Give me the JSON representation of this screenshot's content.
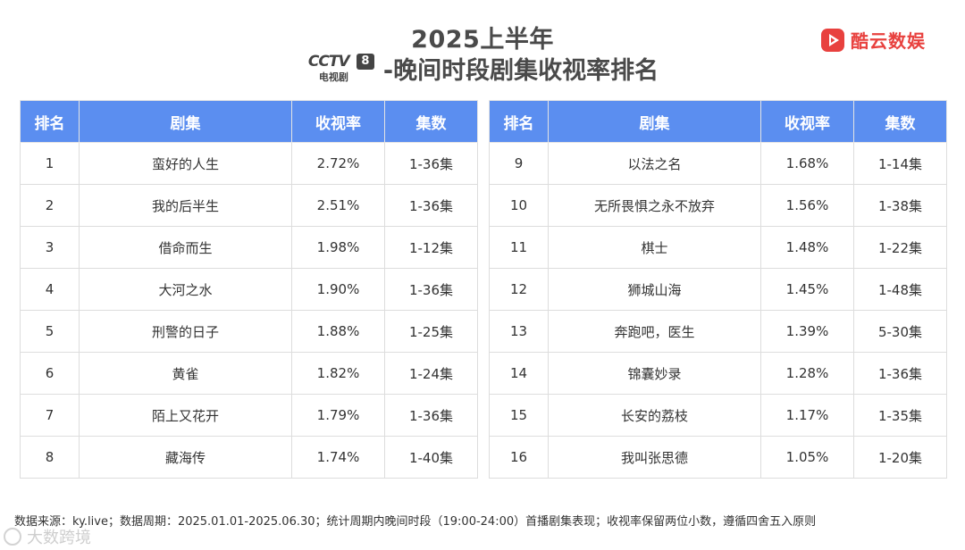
{
  "header": {
    "title_line1": "2025上半年",
    "logo_text": "CCTV",
    "logo_number": "8",
    "logo_sub": "电视剧",
    "title_line2": "-晚间时段剧集收视率排名"
  },
  "brand": {
    "name": "酷云数娱",
    "icon": "play-triangle-icon",
    "color": "#e8413e"
  },
  "table": {
    "headers": [
      "排名",
      "剧集",
      "收视率",
      "集数"
    ],
    "header_color": "#5b8ef0",
    "rows_left": [
      {
        "rank": "1",
        "drama": "蛮好的人生",
        "rating": "2.72%",
        "episodes": "1-36集"
      },
      {
        "rank": "2",
        "drama": "我的后半生",
        "rating": "2.51%",
        "episodes": "1-36集"
      },
      {
        "rank": "3",
        "drama": "借命而生",
        "rating": "1.98%",
        "episodes": "1-12集"
      },
      {
        "rank": "4",
        "drama": "大河之水",
        "rating": "1.90%",
        "episodes": "1-36集"
      },
      {
        "rank": "5",
        "drama": "刑警的日子",
        "rating": "1.88%",
        "episodes": "1-25集"
      },
      {
        "rank": "6",
        "drama": "黄雀",
        "rating": "1.82%",
        "episodes": "1-24集"
      },
      {
        "rank": "7",
        "drama": "陌上又花开",
        "rating": "1.79%",
        "episodes": "1-36集"
      },
      {
        "rank": "8",
        "drama": "藏海传",
        "rating": "1.74%",
        "episodes": "1-40集"
      }
    ],
    "rows_right": [
      {
        "rank": "9",
        "drama": "以法之名",
        "rating": "1.68%",
        "episodes": "1-14集"
      },
      {
        "rank": "10",
        "drama": "无所畏惧之永不放弃",
        "rating": "1.56%",
        "episodes": "1-38集"
      },
      {
        "rank": "11",
        "drama": "棋士",
        "rating": "1.48%",
        "episodes": "1-22集"
      },
      {
        "rank": "12",
        "drama": "狮城山海",
        "rating": "1.45%",
        "episodes": "1-48集"
      },
      {
        "rank": "13",
        "drama": "奔跑吧，医生",
        "rating": "1.39%",
        "episodes": "5-30集"
      },
      {
        "rank": "14",
        "drama": "锦囊妙录",
        "rating": "1.28%",
        "episodes": "1-36集"
      },
      {
        "rank": "15",
        "drama": "长安的荔枝",
        "rating": "1.17%",
        "episodes": "1-35集"
      },
      {
        "rank": "16",
        "drama": "我叫张思德",
        "rating": "1.05%",
        "episodes": "1-20集"
      }
    ]
  },
  "footnote": "数据来源：ky.live；数据周期：2025.01.01-2025.06.30；统计周期内晚间时段（19:00-24:00）首播剧集表现；收视率保留两位小数，遵循四舍五入原则",
  "watermark": "大数跨境"
}
